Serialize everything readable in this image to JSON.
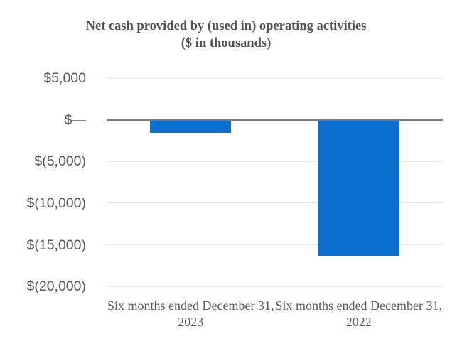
{
  "chart_data": {
    "type": "bar",
    "title": "Net cash provided by (used in) operating activities",
    "subtitle": "($ in thousands)",
    "categories": [
      "Six months ended December 31, 2023",
      "Six months ended December 31, 2022"
    ],
    "values": [
      -1600,
      -16300
    ],
    "xlabel": "",
    "ylabel": "",
    "ylim": [
      -20000,
      5000
    ],
    "y_ticks": [
      {
        "value": 5000,
        "label": "$5,000"
      },
      {
        "value": 0,
        "label": "$—"
      },
      {
        "value": -5000,
        "label": "$(5,000)"
      },
      {
        "value": -10000,
        "label": "$(10,000)"
      },
      {
        "value": -15000,
        "label": "$(15,000)"
      },
      {
        "value": -20000,
        "label": "$(20,000)"
      }
    ],
    "grid": "horizontal",
    "legend": "none",
    "colors": {
      "bar": "#0a6fce",
      "axis_line": "#7a7a7a",
      "gridline": "#ebebeb",
      "text": "#595959",
      "title_text": "#515151",
      "background": "#ffffff"
    }
  }
}
